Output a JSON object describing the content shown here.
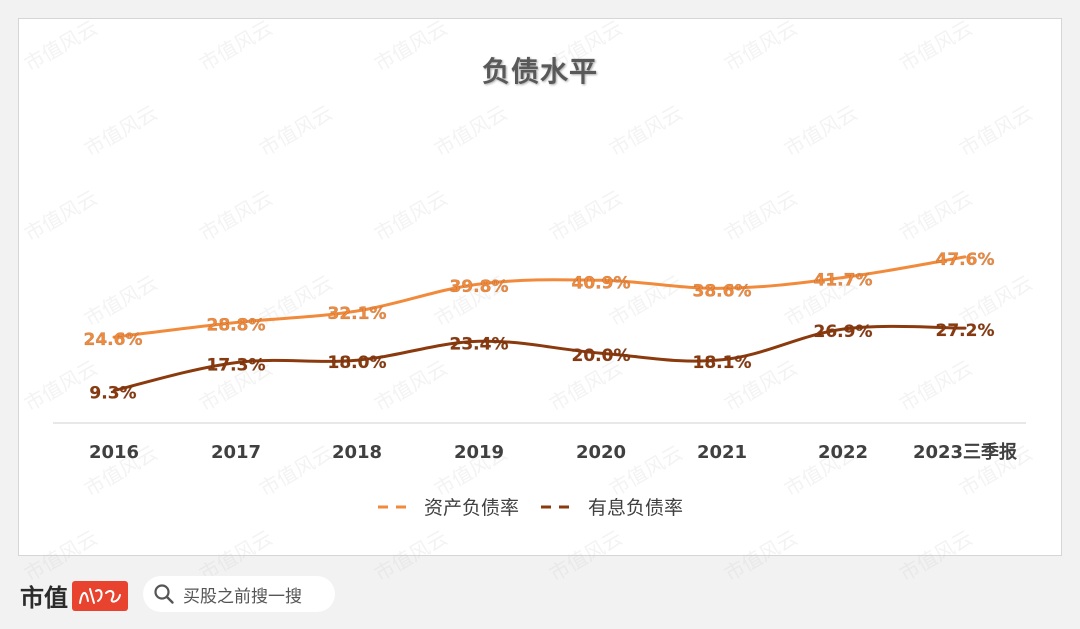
{
  "chart_data": {
    "type": "line",
    "title": "负债水平",
    "categories": [
      "2016",
      "2017",
      "2018",
      "2019",
      "2020",
      "2021",
      "2022",
      "2023三季报"
    ],
    "series": [
      {
        "name": "资产负债率",
        "values": [
          24.6,
          28.8,
          32.1,
          39.8,
          40.9,
          38.6,
          41.7,
          47.6
        ],
        "labels": [
          "24.6%",
          "28.8%",
          "32.1%",
          "39.8%",
          "40.9%",
          "38.6%",
          "41.7%",
          "47.6%"
        ],
        "color": "#f28a3b"
      },
      {
        "name": "有息负债率",
        "values": [
          9.3,
          17.3,
          18.0,
          23.4,
          20.0,
          18.1,
          26.9,
          27.2
        ],
        "labels": [
          "9.3%",
          "17.3%",
          "18.0%",
          "23.4%",
          "20.0%",
          "18.1%",
          "26.9%",
          "27.2%"
        ],
        "color": "#8b3a0e"
      }
    ],
    "legend_position": "bottom",
    "grid": false
  },
  "footer": {
    "brand": "市值",
    "search_placeholder": "买股之前搜一搜",
    "search_icon": "search-icon"
  },
  "watermark": {
    "text": "市值风云",
    "color": "#c8c8c8"
  }
}
